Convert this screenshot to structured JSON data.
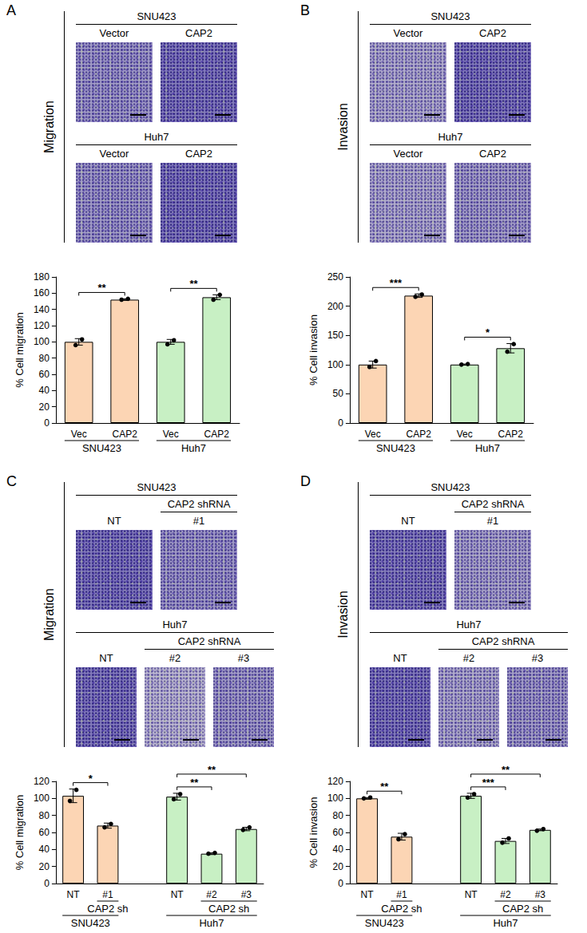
{
  "figure": {
    "panels": [
      {
        "letter": "A",
        "side_label": "Migration",
        "rows": [
          {
            "cell_line": "SNU423",
            "columns": [
              "Vector",
              "CAP2"
            ]
          },
          {
            "cell_line": "Huh7",
            "columns": [
              "Vector",
              "CAP2"
            ]
          }
        ]
      },
      {
        "letter": "B",
        "side_label": "Invasion",
        "rows": [
          {
            "cell_line": "SNU423",
            "columns": [
              "Vector",
              "CAP2"
            ]
          },
          {
            "cell_line": "Huh7",
            "columns": [
              "Vector",
              "CAP2"
            ]
          }
        ]
      },
      {
        "letter": "C",
        "side_label": "Migration",
        "rows": [
          {
            "cell_line": "SNU423",
            "columns": [
              "NT",
              "#1"
            ],
            "group_label": "CAP2 shRNA",
            "group_span": [
              1,
              1
            ]
          },
          {
            "cell_line": "Huh7",
            "columns": [
              "NT",
              "#2",
              "#3"
            ],
            "group_label": "CAP2 shRNA",
            "group_span": [
              1,
              2
            ]
          }
        ]
      },
      {
        "letter": "D",
        "side_label": "Invasion",
        "rows": [
          {
            "cell_line": "SNU423",
            "columns": [
              "NT",
              "#1"
            ],
            "group_label": "CAP2 shRNA",
            "group_span": [
              1,
              1
            ]
          },
          {
            "cell_line": "Huh7",
            "columns": [
              "NT",
              "#2",
              "#3"
            ],
            "group_label": "CAP2 shRNA",
            "group_span": [
              1,
              2
            ]
          }
        ]
      }
    ]
  },
  "chart_data": [
    {
      "type": "bar",
      "ylabel": "% Cell migration",
      "categories": [
        "Vec",
        "CAP2",
        "Vec",
        "CAP2"
      ],
      "values": [
        100,
        152,
        100,
        155
      ],
      "errors": [
        4,
        1,
        3,
        3
      ],
      "points": [
        [
          96,
          103
        ],
        [
          152,
          153
        ],
        [
          97,
          102
        ],
        [
          152,
          158
        ]
      ],
      "colors": [
        "#fcd5b4",
        "#fcd5b4",
        "#c8f0c4",
        "#c8f0c4"
      ],
      "groups": [
        {
          "label": "SNU423",
          "from": 0,
          "to": 1
        },
        {
          "label": "Huh7",
          "from": 2,
          "to": 3
        }
      ],
      "annotations": [
        {
          "from": 0,
          "to": 1,
          "label": "**"
        },
        {
          "from": 2,
          "to": 3,
          "label": "**"
        }
      ],
      "ylim": [
        0,
        180
      ],
      "yticks": [
        0,
        20,
        40,
        60,
        80,
        100,
        120,
        140,
        160,
        180
      ],
      "grid": false
    },
    {
      "type": "bar",
      "ylabel": "% Cell invasion",
      "categories": [
        "Vec",
        "CAP2",
        "Vec",
        "CAP2"
      ],
      "values": [
        100,
        218,
        100,
        128
      ],
      "errors": [
        6,
        3,
        1,
        8
      ],
      "points": [
        [
          96,
          106
        ],
        [
          216,
          220
        ],
        [
          100,
          101
        ],
        [
          122,
          135
        ]
      ],
      "colors": [
        "#fcd5b4",
        "#fcd5b4",
        "#c8f0c4",
        "#c8f0c4"
      ],
      "groups": [
        {
          "label": "SNU423",
          "from": 0,
          "to": 1
        },
        {
          "label": "Huh7",
          "from": 2,
          "to": 3
        }
      ],
      "annotations": [
        {
          "from": 0,
          "to": 1,
          "label": "***"
        },
        {
          "from": 2,
          "to": 3,
          "label": "*"
        }
      ],
      "ylim": [
        0,
        250
      ],
      "yticks": [
        0,
        50,
        100,
        150,
        200,
        250
      ],
      "grid": false
    },
    {
      "type": "bar",
      "ylabel": "% Cell migration",
      "categories": [
        "NT",
        "#1",
        null,
        "NT",
        "#2",
        "#3"
      ],
      "values": [
        103,
        68,
        null,
        102,
        35,
        64
      ],
      "errors": [
        8,
        3,
        null,
        4,
        1,
        2
      ],
      "points": [
        [
          97,
          110
        ],
        [
          66,
          70
        ],
        null,
        [
          99,
          105
        ],
        [
          35,
          36
        ],
        [
          63,
          66
        ]
      ],
      "colors": [
        "#fcd5b4",
        "#fcd5b4",
        null,
        "#c8f0c4",
        "#c8f0c4",
        "#c8f0c4"
      ],
      "subgroups": [
        {
          "label": "CAP2 sh",
          "from": 1,
          "to": 1
        },
        {
          "label": "CAP2 sh",
          "from": 4,
          "to": 5
        }
      ],
      "groups": [
        {
          "label": "SNU423",
          "from": 0,
          "to": 1
        },
        {
          "label": "Huh7",
          "from": 3,
          "to": 5
        }
      ],
      "annotations": [
        {
          "from": 0,
          "to": 1,
          "label": "*"
        },
        {
          "from": 3,
          "to": 4,
          "label": "**"
        },
        {
          "from": 3,
          "to": 5,
          "label": "**"
        }
      ],
      "ylim": [
        0,
        120
      ],
      "yticks": [
        0,
        20,
        40,
        60,
        80,
        100,
        120
      ],
      "grid": false
    },
    {
      "type": "bar",
      "ylabel": "% Cell invasion",
      "categories": [
        "NT",
        "#1",
        null,
        "NT",
        "#2",
        "#3"
      ],
      "values": [
        100,
        55,
        null,
        103,
        50,
        63
      ],
      "errors": [
        1,
        4,
        null,
        3,
        3,
        1
      ],
      "points": [
        [
          100,
          101
        ],
        [
          52,
          58
        ],
        null,
        [
          101,
          105
        ],
        [
          48,
          53
        ],
        [
          62,
          64
        ]
      ],
      "colors": [
        "#fcd5b4",
        "#fcd5b4",
        null,
        "#c8f0c4",
        "#c8f0c4",
        "#c8f0c4"
      ],
      "subgroups": [
        {
          "label": "CAP2 sh",
          "from": 1,
          "to": 1
        },
        {
          "label": "CAP2 sh",
          "from": 4,
          "to": 5
        }
      ],
      "groups": [
        {
          "label": "SNU423",
          "from": 0,
          "to": 1
        },
        {
          "label": "Huh7",
          "from": 3,
          "to": 5
        }
      ],
      "annotations": [
        {
          "from": 0,
          "to": 1,
          "label": "**"
        },
        {
          "from": 3,
          "to": 4,
          "label": "***"
        },
        {
          "from": 3,
          "to": 5,
          "label": "**"
        }
      ],
      "ylim": [
        0,
        120
      ],
      "yticks": [
        0,
        20,
        40,
        60,
        80,
        100,
        120
      ],
      "grid": false
    }
  ]
}
